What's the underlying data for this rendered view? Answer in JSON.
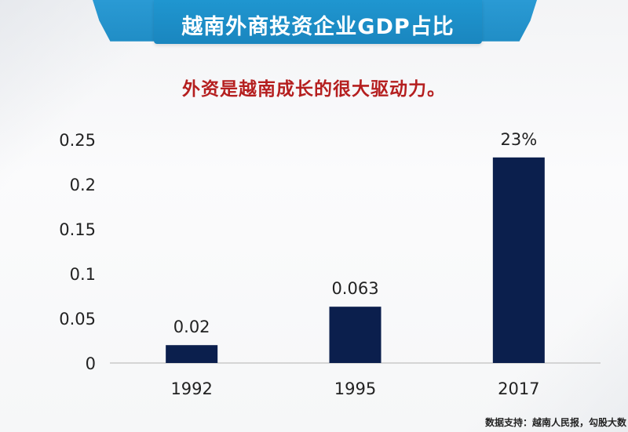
{
  "header": {
    "title": "越南外商投资企业GDP占比",
    "subtitle": "外资是越南成长的很大驱动力。"
  },
  "footer": {
    "source": "数据支持：越南人民报，勾股大数"
  },
  "chart_data": {
    "type": "bar",
    "title": "越南外商投资企业GDP占比",
    "subtitle": "外资是越南成长的很大驱动力。",
    "xlabel": "",
    "ylabel": "",
    "categories": [
      "1992",
      "1995",
      "2017"
    ],
    "values": [
      0.02,
      0.063,
      0.23
    ],
    "data_labels": [
      "0.02",
      "0.063",
      "23%"
    ],
    "ylim": [
      0,
      0.25
    ],
    "yticks": [
      0,
      0.05,
      0.1,
      0.15,
      0.2,
      0.25
    ],
    "ytick_labels": [
      "0",
      "0.05",
      "0.1",
      "0.15",
      "0.2",
      "0.25"
    ],
    "grid": false,
    "bar_color": "#0b1f4d"
  }
}
